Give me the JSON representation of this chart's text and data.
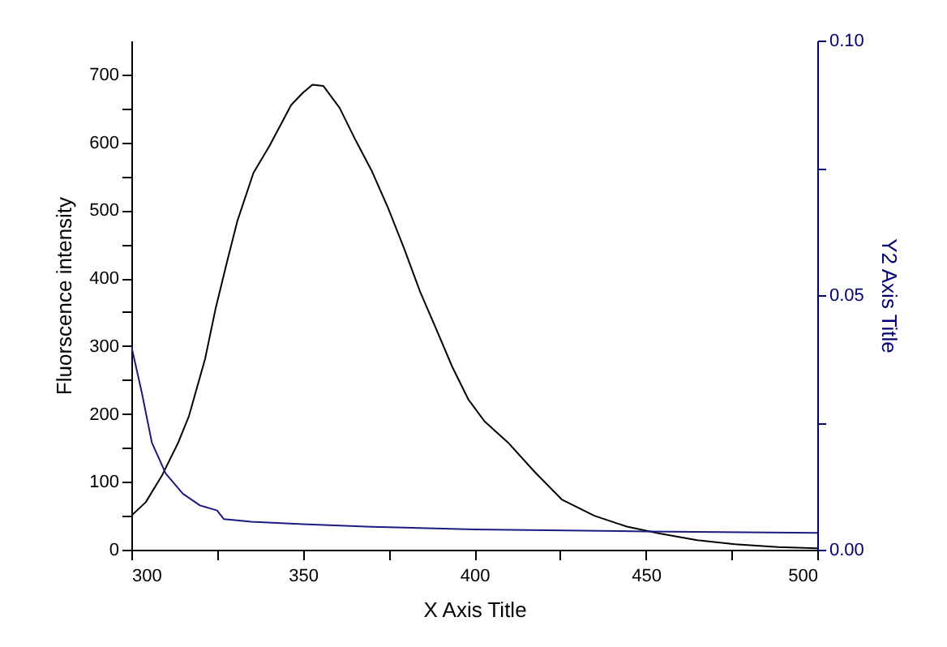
{
  "chart_data": {
    "type": "line",
    "xlabel": "X Axis Title",
    "ylabel": "Fluorscence intensity",
    "y2label": "Y2 Axis Title",
    "xlim": [
      300,
      500
    ],
    "xticks": [
      300,
      {
        "value": 325,
        "label": null
      },
      350,
      {
        "value": 375,
        "label": null
      },
      400,
      {
        "value": 425,
        "label": null
      },
      450,
      {
        "value": 475,
        "label": null
      },
      500
    ],
    "ylim": [
      0,
      750
    ],
    "yticks": [
      0,
      {
        "value": 50,
        "label": null
      },
      100,
      {
        "value": 150,
        "label": null
      },
      200,
      {
        "value": 250,
        "label": null
      },
      300,
      {
        "value": 350,
        "label": null
      },
      400,
      {
        "value": 450,
        "label": null
      },
      500,
      {
        "value": 550,
        "label": null
      },
      600,
      {
        "value": 650,
        "label": null
      },
      700
    ],
    "y2lim": [
      0,
      0.1
    ],
    "y2ticks": [
      {
        "value": 0,
        "label": "0.00"
      },
      {
        "value": 0.025,
        "label": null
      },
      {
        "value": 0.05,
        "label": "0.05"
      },
      {
        "value": 0.075,
        "label": null
      },
      {
        "value": 0.1,
        "label": "0.10"
      }
    ],
    "grid": false,
    "marker": "none",
    "line_style": "solid",
    "series": [
      {
        "color": "#000000",
        "x": [
          300,
          304.2,
          309,
          313.6,
          316.8,
          321.5,
          324.6,
          327.7,
          330.9,
          335.6,
          340.3,
          346.6,
          350,
          352.8,
          356,
          360.7,
          365.4,
          370,
          374.8,
          379.5,
          384.2,
          388.9,
          393.6,
          398.3,
          403,
          409.8,
          417.7,
          425.5,
          435,
          444.5,
          454,
          465,
          476,
          488.6,
          500
        ],
        "values": [
          50,
          70,
          110,
          157,
          197,
          281,
          356,
          420,
          484,
          555,
          595,
          655,
          673,
          685,
          683,
          651,
          603,
          559,
          504,
          444,
          380,
          325,
          269,
          221,
          189,
          158,
          114,
          74,
          50,
          34,
          24,
          14,
          8,
          4,
          2
        ]
      },
      {
        "color": "#1a1a80",
        "axis": "y2",
        "x": [
          300,
          303,
          306,
          310,
          315,
          320,
          325,
          327,
          335,
          350,
          370,
          400,
          450,
          500
        ],
        "values": [
          0.04,
          0.031,
          0.021,
          0.015,
          0.011,
          0.0087,
          0.0077,
          0.006,
          0.0055,
          0.005,
          0.0045,
          0.004,
          0.0036,
          0.0033
        ]
      }
    ]
  }
}
